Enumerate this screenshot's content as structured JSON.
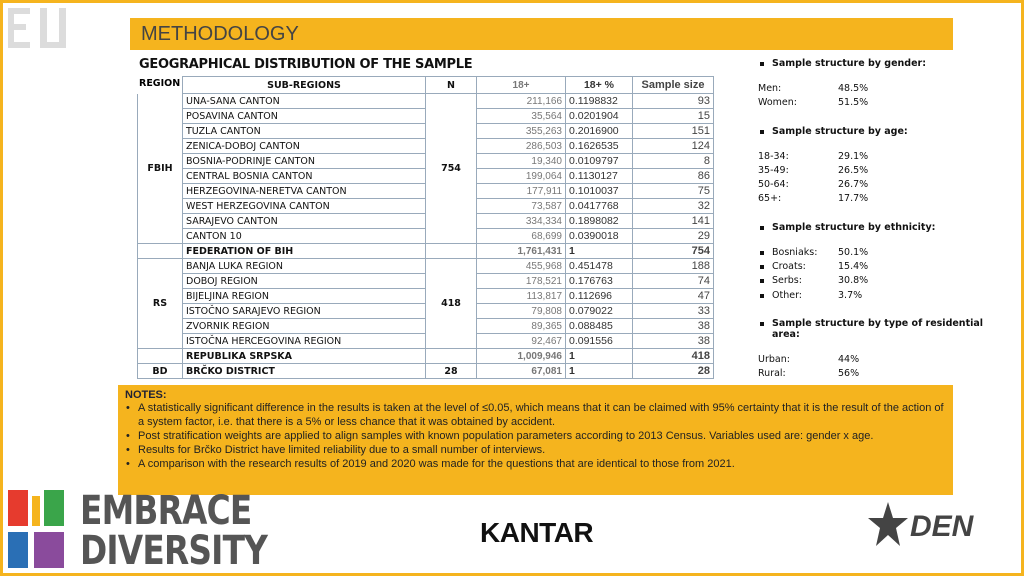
{
  "header": {
    "title": "METHODOLOGY"
  },
  "table": {
    "title": "GEOGRAPHICAL DISTRIBUTION OF THE SAMPLE",
    "columns": [
      "REGION",
      "SUB-REGIONS",
      "N",
      "18+",
      "18+ %",
      "Sample size"
    ],
    "groups": [
      {
        "region": "FBIH",
        "n": "754",
        "rows": [
          {
            "name": "UNA-SANA CANTON",
            "adult": "211,166",
            "pct": "0.1198832",
            "sample": "93"
          },
          {
            "name": "POSAVINA CANTON",
            "adult": "35,564",
            "pct": "0.0201904",
            "sample": "15"
          },
          {
            "name": "TUZLA CANTON",
            "adult": "355,263",
            "pct": "0.2016900",
            "sample": "151"
          },
          {
            "name": "ZENICA-DOBOJ CANTON",
            "adult": "286,503",
            "pct": "0.1626535",
            "sample": "124"
          },
          {
            "name": "BOSNIA-PODRINJE CANTON",
            "adult": "19,340",
            "pct": "0.0109797",
            "sample": "8"
          },
          {
            "name": "CENTRAL BOSNIA CANTON",
            "adult": "199,064",
            "pct": "0.1130127",
            "sample": "86"
          },
          {
            "name": "HERZEGOVINA-NERETVA CANTON",
            "adult": "177,911",
            "pct": "0.1010037",
            "sample": "75"
          },
          {
            "name": "WEST HERZEGOVINA CANTON",
            "adult": "73,587",
            "pct": "0.0417768",
            "sample": "32"
          },
          {
            "name": "SARAJEVO CANTON",
            "adult": "334,334",
            "pct": "0.1898082",
            "sample": "141"
          },
          {
            "name": "CANTON 10",
            "adult": "68,699",
            "pct": "0.0390018",
            "sample": "29"
          }
        ],
        "total": {
          "name": "FEDERATION OF BIH",
          "adult": "1,761,431",
          "pct": "1",
          "sample": "754"
        }
      },
      {
        "region": "RS",
        "n": "418",
        "rows": [
          {
            "name": "BANJA LUKA REGION",
            "adult": "455,968",
            "pct": "0.451478",
            "sample": "188"
          },
          {
            "name": "DOBOJ REGION",
            "adult": "178,521",
            "pct": "0.176763",
            "sample": "74"
          },
          {
            "name": "BIJELJINA REGION",
            "adult": "113,817",
            "pct": "0.112696",
            "sample": "47"
          },
          {
            "name": "ISTOČNO SARAJEVO REGION",
            "adult": "79,808",
            "pct": "0.079022",
            "sample": "33"
          },
          {
            "name": "ZVORNIK REGION",
            "adult": "89,365",
            "pct": "0.088485",
            "sample": "38"
          },
          {
            "name": "ISTOČNA HERCEGOVINA REGION",
            "adult": "92,467",
            "pct": "0.091556",
            "sample": "38"
          }
        ],
        "total": {
          "name": "REPUBLIKA SRPSKA",
          "adult": "1,009,946",
          "pct": "1",
          "sample": "418"
        }
      },
      {
        "region": "BD",
        "n": "28",
        "rows": [],
        "total": {
          "name": "BRČKO DISTRICT",
          "adult": "67,081",
          "pct": "1",
          "sample": "28"
        }
      }
    ]
  },
  "structure": [
    {
      "heading": "Sample structure by gender:",
      "items": [
        {
          "label": "Men:",
          "value": "48.5%"
        },
        {
          "label": "Women:",
          "value": "51.5%"
        }
      ]
    },
    {
      "heading": "Sample structure by age:",
      "items": [
        {
          "label": "18-34:",
          "value": "29.1%"
        },
        {
          "label": "35-49:",
          "value": "26.5%"
        },
        {
          "label": "50-64:",
          "value": "26.7%"
        },
        {
          "label": "65+:",
          "value": "17.7%"
        }
      ]
    },
    {
      "heading": "Sample structure by ethnicity:",
      "items": [
        {
          "label": "Bosniaks:",
          "value": "50.1%"
        },
        {
          "label": "Croats:",
          "value": "15.4%"
        },
        {
          "label": "Serbs:",
          "value": "30.8%"
        },
        {
          "label": "Other:",
          "value": "3.7%"
        }
      ]
    },
    {
      "heading": "Sample structure by type of residential area:",
      "items": [
        {
          "label": "Urban:",
          "value": "44%"
        },
        {
          "label": "Rural:",
          "value": "56%"
        }
      ]
    }
  ],
  "notes": {
    "title": "NOTES:",
    "items": [
      "A statistically significant difference in the results is taken at the level of ≤0.05, which means that it can be claimed with 95% certainty that it is the result of the action of a system factor, i.e. that there is a 5% or less chance that it was obtained by accident.",
      "Post stratification weights are applied to align samples with known population parameters according to 2013 Census. Variables used are: gender x age.",
      "Results for Brčko District have limited reliability due to a small number of interviews.",
      "A comparison with the research results of 2019 and 2020 was made for the questions that are identical to those from 2021."
    ]
  },
  "logos": {
    "embrace": "EMBRACE",
    "diversity": "DIVERSITY",
    "kantar": "KANTAR",
    "den": "DEN"
  }
}
